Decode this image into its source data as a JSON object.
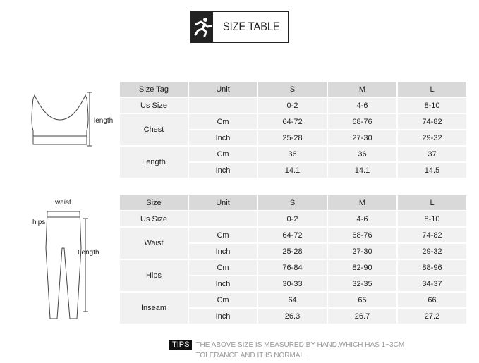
{
  "title": "SIZE TABLE",
  "icon": "running-person-icon",
  "bra": {
    "dimension_label": "length",
    "header": [
      "Size Tag",
      "Unit",
      "S",
      "M",
      "L"
    ],
    "rows": [
      {
        "label": "Us Size",
        "sub": [
          {
            "unit": "",
            "values": [
              "0-2",
              "4-6",
              "8-10"
            ]
          }
        ]
      },
      {
        "label": "Chest",
        "sub": [
          {
            "unit": "Cm",
            "values": [
              "64-72",
              "68-76",
              "74-82"
            ]
          },
          {
            "unit": "Inch",
            "values": [
              "25-28",
              "27-30",
              "29-32"
            ]
          }
        ]
      },
      {
        "label": "Length",
        "sub": [
          {
            "unit": "Cm",
            "values": [
              "36",
              "36",
              "37"
            ]
          },
          {
            "unit": "Inch",
            "values": [
              "14.1",
              "14.1",
              "14.5"
            ]
          }
        ]
      }
    ]
  },
  "leggings": {
    "labels": {
      "waist": "waist",
      "hips": "hips",
      "length": "Length"
    },
    "header": [
      "Size",
      "Unit",
      "S",
      "M",
      "L"
    ],
    "rows": [
      {
        "label": "Us Size",
        "sub": [
          {
            "unit": "",
            "values": [
              "0-2",
              "4-6",
              "8-10"
            ]
          }
        ]
      },
      {
        "label": "Waist",
        "sub": [
          {
            "unit": "Cm",
            "values": [
              "64-72",
              "68-76",
              "74-82"
            ]
          },
          {
            "unit": "Inch",
            "values": [
              "25-28",
              "27-30",
              "29-32"
            ]
          }
        ]
      },
      {
        "label": "Hips",
        "sub": [
          {
            "unit": "Cm",
            "values": [
              "76-84",
              "82-90",
              "88-96"
            ]
          },
          {
            "unit": "Inch",
            "values": [
              "30-33",
              "32-35",
              "34-37"
            ]
          }
        ]
      },
      {
        "label": "Inseam",
        "sub": [
          {
            "unit": "Cm",
            "values": [
              "64",
              "65",
              "66"
            ]
          },
          {
            "unit": "Inch",
            "values": [
              "26.3",
              "26.7",
              "27.2"
            ]
          }
        ]
      }
    ]
  },
  "tips": {
    "badge": "TIPS",
    "line1": "THE ABOVE SIZE IS MEASURED BY HAND,WHICH HAS 1~3CM",
    "line2": "TOLERANCE AND IT IS NORMAL."
  }
}
